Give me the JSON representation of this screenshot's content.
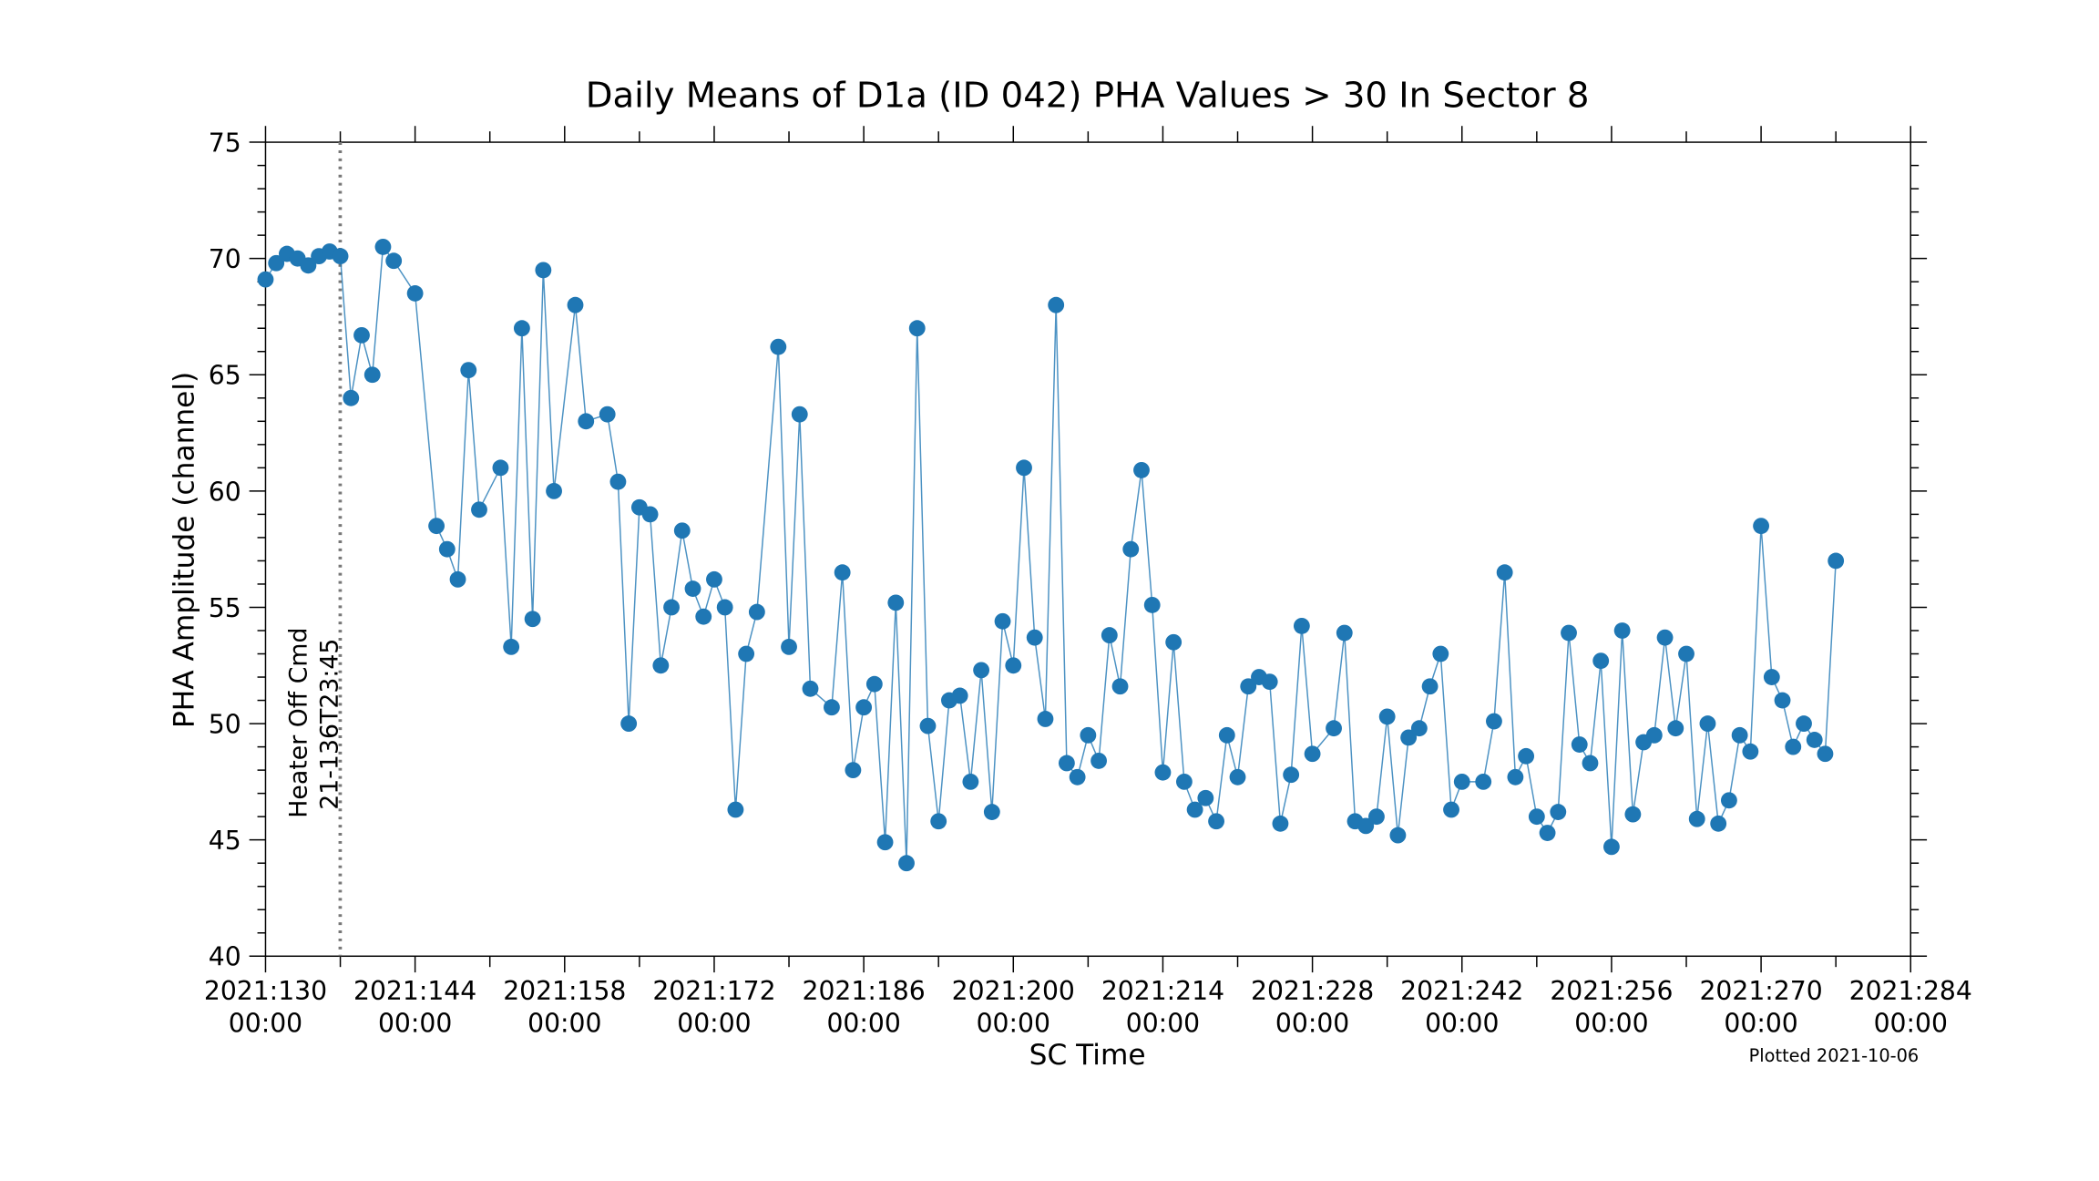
{
  "chart_data": {
    "type": "line",
    "title": "Daily Means of D1a (ID 042) PHA Values > 30 In Sector 8",
    "x_label": "SC Time",
    "y_label": "PHA Amplitude (channel)",
    "footnote": "Plotted 2021-10-06",
    "color": "#1f77b4",
    "x": [
      130,
      131,
      132,
      133,
      134,
      135,
      136,
      137,
      138,
      139,
      140,
      141,
      142,
      144,
      146,
      147,
      148,
      149,
      150,
      152,
      153,
      154,
      155,
      156,
      157,
      159,
      160,
      162,
      163,
      164,
      165,
      166,
      167,
      168,
      169,
      170,
      171,
      172,
      173,
      174,
      175,
      176,
      178,
      179,
      180,
      181,
      183,
      184,
      185,
      186,
      187,
      188,
      189,
      190,
      191,
      192,
      193,
      194,
      195,
      196,
      197,
      198,
      199,
      200,
      201,
      202,
      203,
      204,
      205,
      206,
      207,
      208,
      209,
      210,
      211,
      212,
      213,
      214,
      215,
      216,
      217,
      218,
      219,
      220,
      221,
      222,
      223,
      224,
      225,
      226,
      227,
      228,
      230,
      231,
      232,
      233,
      234,
      235,
      236,
      237,
      238,
      239,
      240,
      241,
      242,
      244,
      245,
      246,
      247,
      248,
      249,
      250,
      251,
      252,
      253,
      254,
      255,
      256,
      257,
      258,
      259,
      260,
      261,
      262,
      263,
      264,
      265,
      266,
      267,
      268,
      269,
      270,
      271,
      272,
      273,
      274,
      275,
      276,
      277
    ],
    "values": [
      69.1,
      69.8,
      70.2,
      70.0,
      69.7,
      70.1,
      70.3,
      70.1,
      64.0,
      66.7,
      65.0,
      70.5,
      69.9,
      68.5,
      58.5,
      57.5,
      56.2,
      65.2,
      59.2,
      61.0,
      53.3,
      67.0,
      54.5,
      69.5,
      60.0,
      68.0,
      63.0,
      63.3,
      60.4,
      50.0,
      59.3,
      59.0,
      52.5,
      55.0,
      58.3,
      55.8,
      54.6,
      56.2,
      55.0,
      46.3,
      53.0,
      54.8,
      66.2,
      53.3,
      63.3,
      51.5,
      50.7,
      56.5,
      48.0,
      50.7,
      51.7,
      44.9,
      55.2,
      44.0,
      67.0,
      49.9,
      45.8,
      51.0,
      51.2,
      47.5,
      52.3,
      46.2,
      54.4,
      52.5,
      61.0,
      53.7,
      50.2,
      68.0,
      48.3,
      47.7,
      49.5,
      48.4,
      53.8,
      51.6,
      57.5,
      60.9,
      55.1,
      47.9,
      53.5,
      47.5,
      46.3,
      46.8,
      45.8,
      49.5,
      47.7,
      51.6,
      52.0,
      51.8,
      45.7,
      47.8,
      54.2,
      48.7,
      49.8,
      53.9,
      45.8,
      45.6,
      46.0,
      50.3,
      45.2,
      49.4,
      49.8,
      51.6,
      53.0,
      46.3,
      47.5,
      47.5,
      50.1,
      56.5,
      47.7,
      48.6,
      46.0,
      45.3,
      46.2,
      53.9,
      49.1,
      48.3,
      52.7,
      44.7,
      54.0,
      46.1,
      49.2,
      49.5,
      53.7,
      49.8,
      53.0,
      45.9,
      50.0,
      45.7,
      46.7,
      49.5,
      48.8,
      58.5,
      52.0,
      51.0,
      49.0,
      50.0,
      49.3,
      48.7,
      57.0
    ],
    "xlim": [
      130,
      284
    ],
    "xticks": [
      {
        "value": 130,
        "label": [
          "2021:130",
          "00:00"
        ]
      },
      {
        "value": 144,
        "label": [
          "2021:144",
          "00:00"
        ]
      },
      {
        "value": 158,
        "label": [
          "2021:158",
          "00:00"
        ]
      },
      {
        "value": 172,
        "label": [
          "2021:172",
          "00:00"
        ]
      },
      {
        "value": 186,
        "label": [
          "2021:186",
          "00:00"
        ]
      },
      {
        "value": 200,
        "label": [
          "2021:200",
          "00:00"
        ]
      },
      {
        "value": 214,
        "label": [
          "2021:214",
          "00:00"
        ]
      },
      {
        "value": 228,
        "label": [
          "2021:228",
          "00:00"
        ]
      },
      {
        "value": 242,
        "label": [
          "2021:242",
          "00:00"
        ]
      },
      {
        "value": 256,
        "label": [
          "2021:256",
          "00:00"
        ]
      },
      {
        "value": 270,
        "label": [
          "2021:270",
          "00:00"
        ]
      },
      {
        "value": 284,
        "label": [
          "2021:284",
          "00:00"
        ]
      }
    ],
    "xminorticks": [
      137,
      151,
      165,
      179,
      193,
      207,
      221,
      235,
      249,
      263,
      277
    ],
    "ylim": [
      40,
      75
    ],
    "yticks": [
      40,
      45,
      50,
      55,
      60,
      65,
      70,
      75
    ],
    "yminorticks": [
      41,
      42,
      43,
      44,
      46,
      47,
      48,
      49,
      51,
      52,
      53,
      54,
      56,
      57,
      58,
      59,
      61,
      62,
      63,
      64,
      66,
      67,
      68,
      69,
      71,
      72,
      73,
      74
    ],
    "annotation": {
      "x": 136.99,
      "lines": [
        "Heater Off Cmd",
        "21-136T23:45"
      ]
    }
  }
}
